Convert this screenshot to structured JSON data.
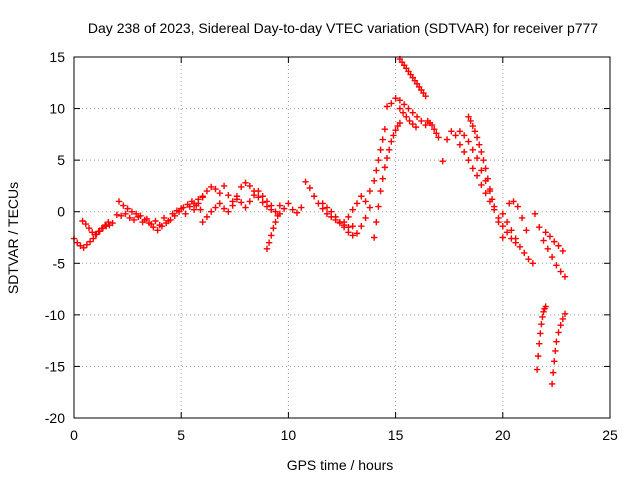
{
  "chart_data": {
    "type": "scatter",
    "title": "Day 238 of 2023, Sidereal Day-to-day VTEC variation (SDTVAR) for receiver p777",
    "xlabel": "GPS time / hours",
    "ylabel": "SDTVAR / TECUs",
    "xlim": [
      0,
      25
    ],
    "ylim": [
      -20,
      15
    ],
    "xticks": [
      0,
      5,
      10,
      15,
      20,
      25
    ],
    "yticks": [
      -20,
      -15,
      -10,
      -5,
      0,
      5,
      10,
      15
    ],
    "grid": true,
    "marker": "+",
    "color": "#ff0000",
    "series_segments": [
      {
        "name": "seg1",
        "x": [
          0.0,
          0.15,
          0.3,
          0.45,
          0.6,
          0.75,
          0.9,
          1.05,
          1.2,
          1.35,
          1.5,
          1.65,
          1.8
        ],
        "y": [
          -2.6,
          -3.0,
          -3.3,
          -3.5,
          -3.2,
          -2.9,
          -2.6,
          -2.2,
          -1.9,
          -1.6,
          -1.4,
          -1.3,
          -1.1
        ]
      },
      {
        "name": "seg2",
        "x": [
          0.4,
          0.55,
          0.7,
          0.85,
          1.0,
          1.15,
          1.3,
          1.45,
          1.6
        ],
        "y": [
          -0.9,
          -1.2,
          -1.6,
          -2.0,
          -2.2,
          -1.9,
          -1.6,
          -1.3,
          -1.0
        ]
      },
      {
        "name": "seg3",
        "x": [
          2.0,
          2.2,
          2.4,
          2.6,
          2.8,
          3.0,
          3.2,
          3.4,
          3.6,
          3.8,
          4.0,
          4.2,
          4.4,
          4.6,
          4.8,
          5.0,
          5.2,
          5.4,
          5.6,
          5.8,
          6.0
        ],
        "y": [
          -0.3,
          -0.4,
          -0.2,
          -0.6,
          -0.8,
          -0.5,
          -1.0,
          -0.7,
          -1.2,
          -0.9,
          -1.3,
          -0.6,
          -0.9,
          -0.2,
          0.1,
          0.3,
          -0.2,
          0.5,
          0.8,
          1.2,
          1.5
        ]
      },
      {
        "name": "seg4",
        "x": [
          2.1,
          2.3,
          2.5,
          2.7,
          2.9,
          3.1,
          3.3,
          3.5,
          3.7,
          3.9,
          4.1,
          4.3,
          4.5,
          4.7,
          4.9,
          5.1,
          5.3,
          5.5,
          5.7,
          5.9
        ],
        "y": [
          1.0,
          0.6,
          0.3,
          0.0,
          -0.2,
          -0.4,
          -0.8,
          -1.1,
          -1.5,
          -1.8,
          -1.4,
          -1.1,
          -0.8,
          -0.4,
          0.0,
          0.4,
          0.7,
          1.0,
          0.6,
          0.2
        ]
      },
      {
        "name": "seg5",
        "x": [
          5.6,
          5.8,
          6.0,
          6.2,
          6.4,
          6.6,
          6.8,
          7.0,
          7.2,
          7.4,
          7.6,
          7.8,
          8.0,
          8.2,
          8.4,
          8.6,
          8.8,
          9.0,
          9.2,
          9.4,
          9.6
        ],
        "y": [
          0.2,
          0.8,
          1.4,
          2.0,
          2.4,
          2.2,
          1.8,
          2.5,
          1.6,
          1.0,
          1.5,
          2.4,
          2.8,
          2.5,
          2.0,
          1.4,
          0.9,
          0.5,
          0.2,
          0.0,
          -0.2
        ]
      },
      {
        "name": "seg6",
        "x": [
          6.0,
          6.2,
          6.4,
          6.6,
          6.8,
          7.0,
          7.2,
          7.4,
          7.6,
          7.8,
          8.0,
          8.2,
          8.4,
          8.6,
          8.8,
          9.0,
          9.2
        ],
        "y": [
          -1.0,
          -0.5,
          0.0,
          0.4,
          0.8,
          0.3,
          0.0,
          0.6,
          1.2,
          0.9,
          0.4,
          1.0,
          1.6,
          2.0,
          1.5,
          1.0,
          0.6
        ]
      },
      {
        "name": "seg7",
        "x": [
          9.0,
          9.1,
          9.2,
          9.3,
          9.4,
          9.5
        ],
        "y": [
          -3.6,
          -3.0,
          -2.3,
          -1.6,
          -1.0,
          -0.4
        ]
      },
      {
        "name": "seg8",
        "x": [
          9.6,
          9.8,
          10.0,
          10.2,
          10.4,
          10.6,
          10.8,
          11.0,
          11.2,
          11.4,
          11.6,
          11.8,
          12.0,
          12.2,
          12.4,
          12.6,
          12.8,
          13.0
        ],
        "y": [
          0.6,
          0.3,
          0.8,
          0.2,
          -0.1,
          0.4,
          2.9,
          2.3,
          1.5,
          0.8,
          0.3,
          -0.2,
          -0.5,
          -0.8,
          -1.1,
          -1.3,
          -1.5,
          -1.4
        ]
      },
      {
        "name": "seg9",
        "x": [
          11.6,
          11.8,
          12.0,
          12.2,
          12.4,
          12.6,
          12.8,
          13.0,
          13.2,
          13.4,
          13.6,
          13.8
        ],
        "y": [
          0.8,
          0.4,
          0.0,
          -0.5,
          -1.0,
          -1.5,
          -2.0,
          -2.3,
          -2.1,
          -1.4,
          -0.6,
          0.4
        ]
      },
      {
        "name": "seg10",
        "x": [
          12.6,
          12.8,
          13.0,
          13.2,
          13.4,
          13.6,
          13.8,
          14.0,
          14.1,
          14.2,
          14.3,
          14.4,
          14.5
        ],
        "y": [
          -1.0,
          -0.5,
          0.2,
          0.8,
          1.5,
          1.0,
          2.0,
          3.0,
          4.0,
          5.0,
          6.0,
          7.0,
          8.0
        ]
      },
      {
        "name": "seg11",
        "x": [
          14.0,
          14.1,
          14.2,
          14.3,
          14.4,
          14.5,
          14.6,
          14.7,
          14.8,
          14.9,
          15.0,
          15.1,
          15.2
        ],
        "y": [
          -2.5,
          -1.0,
          0.5,
          2.0,
          3.2,
          4.3,
          5.2,
          6.0,
          6.8,
          7.4,
          7.9,
          8.3,
          8.6
        ]
      },
      {
        "name": "seg12",
        "x": [
          15.2,
          15.35,
          15.5,
          15.65,
          15.8,
          15.95
        ],
        "y": [
          10.0,
          9.6,
          9.2,
          8.8,
          8.5,
          8.2
        ]
      },
      {
        "name": "seg13",
        "x": [
          15.2,
          15.3,
          15.4,
          15.5,
          15.6,
          15.7,
          15.8,
          15.9,
          16.0,
          16.1,
          16.2,
          16.3,
          16.4
        ],
        "y": [
          14.8,
          14.5,
          14.2,
          13.9,
          13.6,
          13.3,
          13.0,
          12.7,
          12.4,
          12.1,
          11.8,
          11.5,
          11.2
        ]
      },
      {
        "name": "seg14",
        "x": [
          14.6,
          14.8,
          15.0,
          15.2,
          15.4,
          15.6,
          15.8,
          16.0,
          16.2,
          16.4
        ],
        "y": [
          10.2,
          10.5,
          11.0,
          10.8,
          10.4,
          10.0,
          9.6,
          9.2,
          8.8,
          8.4
        ]
      },
      {
        "name": "seg15",
        "x": [
          16.5,
          16.6,
          16.7,
          16.8,
          16.9,
          17.0,
          17.2,
          17.4,
          17.6,
          17.8,
          18.0,
          18.2,
          18.4,
          18.6,
          18.8,
          19.0,
          19.2,
          19.4,
          19.6,
          19.8,
          20.0
        ],
        "y": [
          8.8,
          8.6,
          8.4,
          8.0,
          7.6,
          7.2,
          4.9,
          7.0,
          7.8,
          7.4,
          7.8,
          7.4,
          6.8,
          6.0,
          5.2,
          4.0,
          3.0,
          2.0,
          0.5,
          -1.0,
          -2.5
        ]
      },
      {
        "name": "seg16",
        "x": [
          18.4,
          18.5,
          18.6,
          18.7,
          18.8,
          18.9,
          19.0,
          19.1,
          19.2,
          19.3,
          19.4,
          19.5
        ],
        "y": [
          9.2,
          8.8,
          8.3,
          7.8,
          7.2,
          6.5,
          5.8,
          5.0,
          4.2,
          3.2,
          2.2,
          1.2
        ]
      },
      {
        "name": "seg17",
        "x": [
          18.0,
          18.2,
          18.4,
          18.6,
          18.8,
          19.0,
          19.2,
          19.4,
          19.6,
          19.8,
          20.0,
          20.2,
          20.4,
          20.6
        ],
        "y": [
          6.5,
          5.8,
          5.0,
          4.2,
          3.5,
          2.6,
          1.8,
          1.0,
          0.2,
          -0.6,
          -1.4,
          -2.0,
          -2.6,
          -3.0
        ]
      },
      {
        "name": "seg18",
        "x": [
          20.0,
          20.2,
          20.4,
          20.6,
          20.8,
          21.0,
          21.2,
          21.4
        ],
        "y": [
          -0.2,
          -1.0,
          -1.8,
          -2.6,
          -3.4,
          -4.0,
          -4.6,
          -5.0
        ]
      },
      {
        "name": "seg19",
        "x": [
          20.3,
          20.5,
          20.7,
          20.9,
          21.1
        ],
        "y": [
          0.8,
          1.0,
          0.5,
          -0.6,
          -1.8
        ]
      },
      {
        "name": "seg20",
        "x": [
          21.5,
          21.7,
          21.9,
          22.1,
          22.3,
          22.5,
          22.7,
          22.9
        ],
        "y": [
          -0.2,
          -1.5,
          -2.8,
          -3.6,
          -4.4,
          -5.2,
          -5.8,
          -6.3
        ]
      },
      {
        "name": "seg21",
        "x": [
          22.0,
          22.2,
          22.4,
          22.6,
          22.8
        ],
        "y": [
          -2.0,
          -2.4,
          -2.9,
          -3.3,
          -3.8
        ]
      },
      {
        "name": "seg22",
        "x": [
          21.6,
          21.65,
          21.7,
          21.75,
          21.8,
          21.85,
          21.9,
          21.95,
          22.0
        ],
        "y": [
          -15.3,
          -14.0,
          -12.8,
          -11.8,
          -10.9,
          -10.2,
          -9.7,
          -9.4,
          -9.2
        ]
      },
      {
        "name": "seg23",
        "x": [
          22.3,
          22.35,
          22.4,
          22.45,
          22.5,
          22.6,
          22.7,
          22.8,
          22.9
        ],
        "y": [
          -16.7,
          -15.6,
          -14.5,
          -13.5,
          -12.6,
          -11.7,
          -11.0,
          -10.4,
          -9.9
        ]
      }
    ]
  }
}
